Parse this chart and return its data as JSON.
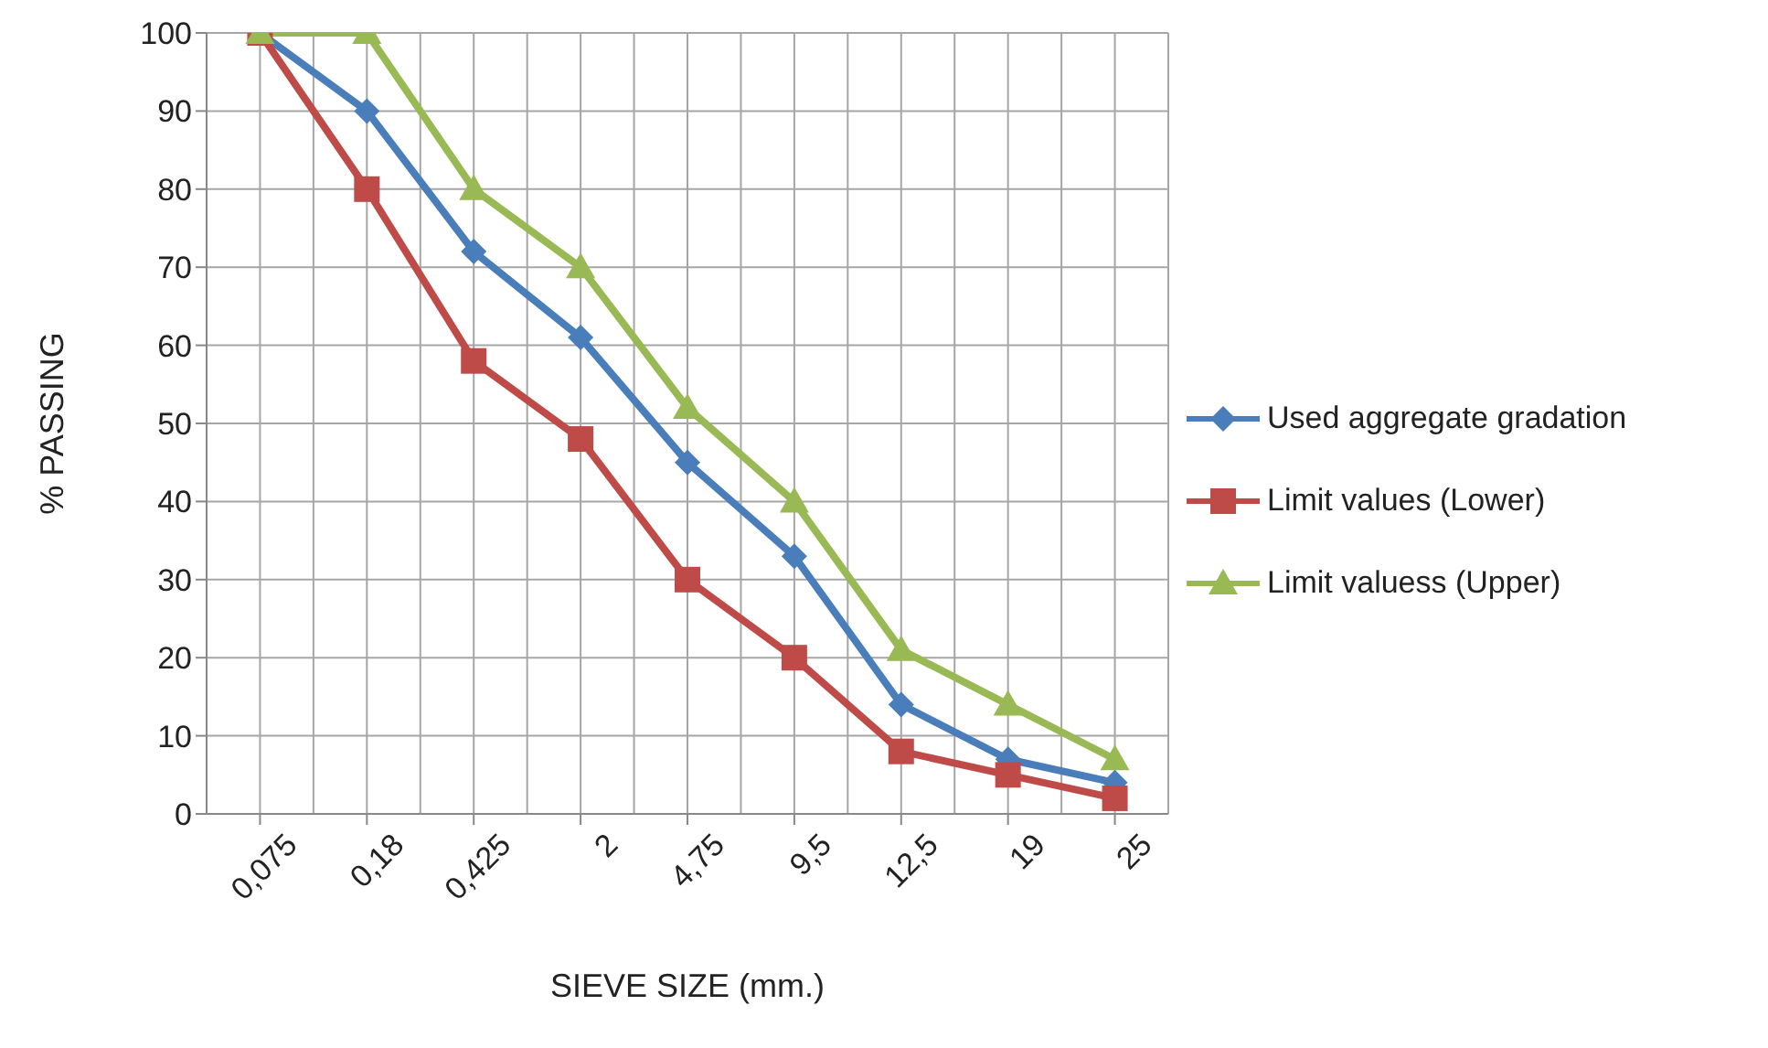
{
  "chart_data": {
    "type": "line",
    "xlabel": "SIEVE SIZE (mm.)",
    "ylabel": "% PASSING",
    "categories": [
      "0,075",
      "0,18",
      "0,425",
      "2",
      "4,75",
      "9,5",
      "12,5",
      "19",
      "25"
    ],
    "series": [
      {
        "name": "Used aggregate gradation",
        "color": "#4a7ebb",
        "marker": "diamond",
        "values": [
          100,
          90,
          72,
          61,
          45,
          33,
          14,
          7,
          4
        ]
      },
      {
        "name": "Limit values (Lower)",
        "color": "#be4b48",
        "marker": "square",
        "values": [
          100,
          80,
          58,
          48,
          30,
          20,
          8,
          5,
          2
        ]
      },
      {
        "name": "Limit valuess (Upper)",
        "color": "#98b954",
        "marker": "triangle",
        "values": [
          100,
          100,
          80,
          70,
          52,
          40,
          21,
          14,
          7
        ]
      }
    ],
    "ylim": [
      0,
      100
    ],
    "yticks": [
      0,
      10,
      20,
      30,
      40,
      50,
      60,
      70,
      80,
      90,
      100
    ],
    "grid": true,
    "legend": "right",
    "line_style": "solid"
  }
}
